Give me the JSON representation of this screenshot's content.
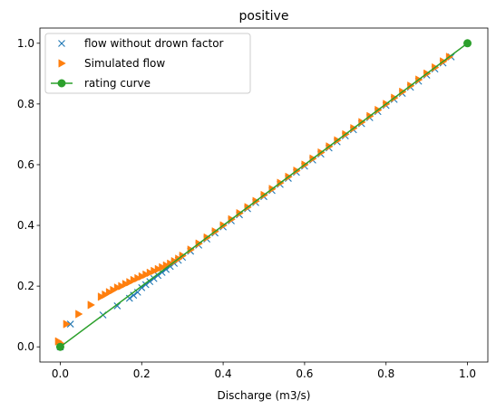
{
  "chart_data": {
    "type": "scatter",
    "title": "positive",
    "xlabel": "Discharge (m3/s)",
    "ylabel": "",
    "xlim": [
      -0.05,
      1.05
    ],
    "ylim": [
      -0.05,
      1.05
    ],
    "xticks": [
      "0.0",
      "0.2",
      "0.4",
      "0.6",
      "0.8",
      "1.0"
    ],
    "yticks": [
      "0.0",
      "0.2",
      "0.4",
      "0.6",
      "0.8",
      "1.0"
    ],
    "grid": false,
    "legend_position": "top-left",
    "series": [
      {
        "name": "flow without drown factor",
        "marker": "x",
        "color": "#1f77b4",
        "x": [
          0.0,
          0.025,
          0.105,
          0.14,
          0.17,
          0.18,
          0.19,
          0.2,
          0.21,
          0.22,
          0.23,
          0.24,
          0.25,
          0.26,
          0.27,
          0.28,
          0.29,
          0.3,
          0.32,
          0.34,
          0.36,
          0.38,
          0.4,
          0.42,
          0.44,
          0.46,
          0.48,
          0.5,
          0.52,
          0.54,
          0.56,
          0.58,
          0.6,
          0.62,
          0.64,
          0.66,
          0.68,
          0.7,
          0.72,
          0.74,
          0.76,
          0.78,
          0.8,
          0.82,
          0.84,
          0.86,
          0.88,
          0.9,
          0.92,
          0.94,
          0.96
        ],
        "y": [
          0.0,
          0.075,
          0.105,
          0.135,
          0.16,
          0.17,
          0.18,
          0.195,
          0.205,
          0.215,
          0.225,
          0.235,
          0.245,
          0.255,
          0.265,
          0.275,
          0.285,
          0.295,
          0.315,
          0.335,
          0.355,
          0.375,
          0.395,
          0.415,
          0.435,
          0.455,
          0.475,
          0.495,
          0.515,
          0.535,
          0.555,
          0.575,
          0.595,
          0.615,
          0.635,
          0.655,
          0.675,
          0.695,
          0.715,
          0.735,
          0.755,
          0.775,
          0.795,
          0.815,
          0.835,
          0.855,
          0.875,
          0.895,
          0.915,
          0.935,
          0.955
        ]
      },
      {
        "name": "Simulated flow",
        "marker": "triangle-right",
        "color": "#ff7f0e",
        "x": [
          -0.005,
          0.0,
          0.015,
          0.045,
          0.075,
          0.1,
          0.11,
          0.12,
          0.13,
          0.14,
          0.15,
          0.16,
          0.17,
          0.18,
          0.19,
          0.2,
          0.21,
          0.22,
          0.23,
          0.24,
          0.25,
          0.26,
          0.27,
          0.28,
          0.29,
          0.3,
          0.32,
          0.34,
          0.36,
          0.38,
          0.4,
          0.42,
          0.44,
          0.46,
          0.48,
          0.5,
          0.52,
          0.54,
          0.56,
          0.58,
          0.6,
          0.62,
          0.64,
          0.66,
          0.68,
          0.7,
          0.72,
          0.74,
          0.76,
          0.78,
          0.8,
          0.82,
          0.84,
          0.86,
          0.88,
          0.9,
          0.92,
          0.94,
          0.955
        ],
        "y": [
          0.018,
          0.012,
          0.075,
          0.108,
          0.138,
          0.165,
          0.172,
          0.18,
          0.187,
          0.195,
          0.2,
          0.207,
          0.213,
          0.22,
          0.226,
          0.232,
          0.238,
          0.244,
          0.25,
          0.256,
          0.262,
          0.268,
          0.274,
          0.282,
          0.29,
          0.3,
          0.32,
          0.34,
          0.36,
          0.38,
          0.4,
          0.42,
          0.44,
          0.46,
          0.48,
          0.5,
          0.52,
          0.54,
          0.56,
          0.58,
          0.6,
          0.62,
          0.64,
          0.66,
          0.68,
          0.7,
          0.72,
          0.74,
          0.76,
          0.78,
          0.8,
          0.82,
          0.84,
          0.86,
          0.88,
          0.9,
          0.92,
          0.94,
          0.955
        ]
      },
      {
        "name": "rating curve",
        "marker": "circle-line",
        "color": "#2ca02c",
        "x": [
          0.0,
          1.0
        ],
        "y": [
          0.0,
          1.0
        ]
      }
    ]
  }
}
